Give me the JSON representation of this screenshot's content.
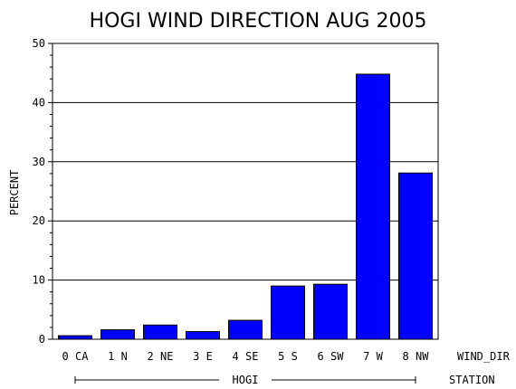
{
  "chart_data": {
    "type": "bar",
    "title": "HOGI WIND DIRECTION AUG 2005",
    "ylabel": "PERCENT",
    "xlabel": "WIND_DIR",
    "group_axis_label": "STATION",
    "group": "HOGI",
    "ylim": [
      0,
      50
    ],
    "yticks": [
      0,
      10,
      20,
      30,
      40,
      50
    ],
    "grid": true,
    "categories": [
      "0 CA",
      "1 N",
      "2 NE",
      "3 E",
      "4 SE",
      "5 S",
      "6 SW",
      "7 W",
      "8 NW"
    ],
    "values": [
      0.6,
      1.6,
      2.4,
      1.3,
      3.2,
      9.0,
      9.3,
      44.8,
      28.1
    ],
    "bar_color": "#0000ff"
  }
}
